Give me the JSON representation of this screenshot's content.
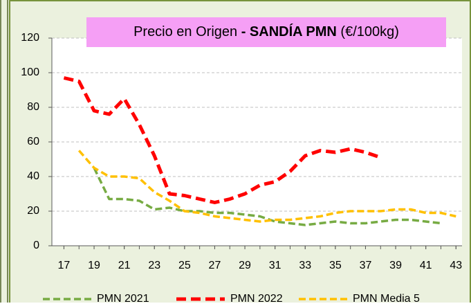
{
  "chart_data": {
    "type": "line",
    "title": [
      "Precio en Origen",
      "- SANDÍA PMN",
      "(€/100kg)"
    ],
    "x": [
      17,
      18,
      19,
      20,
      21,
      22,
      23,
      24,
      25,
      26,
      27,
      28,
      29,
      30,
      31,
      32,
      33,
      34,
      35,
      36,
      37,
      38,
      39,
      40,
      41,
      42,
      43
    ],
    "xlim": [
      16.2,
      43.4
    ],
    "xticks": [
      17,
      19,
      21,
      23,
      25,
      27,
      29,
      31,
      33,
      35,
      37,
      39,
      41,
      43
    ],
    "ylim": [
      0,
      120
    ],
    "yticks": [
      0,
      20,
      40,
      60,
      80,
      100,
      120
    ],
    "grid": true,
    "series": [
      {
        "name": "PMN 2021",
        "color": "#77ab43",
        "values": [
          null,
          null,
          45,
          27,
          27,
          26,
          21,
          22,
          20,
          20,
          19,
          19,
          18,
          17,
          14,
          13,
          12,
          13,
          14,
          13,
          13,
          14,
          15,
          15,
          14,
          13,
          null
        ]
      },
      {
        "name": "PMN 2022",
        "color": "#ff0000",
        "values": [
          97,
          95,
          78,
          76,
          85,
          70,
          52,
          30,
          29,
          27,
          25,
          27,
          30,
          35,
          37,
          43,
          52,
          55,
          54,
          56,
          54,
          51,
          null,
          null,
          null,
          null,
          null
        ]
      },
      {
        "name": "PMN Media 5",
        "color": "#ffc000",
        "values": [
          null,
          55,
          45,
          40,
          40,
          39,
          31,
          26,
          20,
          19,
          17,
          16,
          15,
          14,
          15,
          15,
          16,
          17,
          19,
          20,
          20,
          20,
          21,
          21,
          19,
          19,
          17
        ]
      }
    ]
  }
}
